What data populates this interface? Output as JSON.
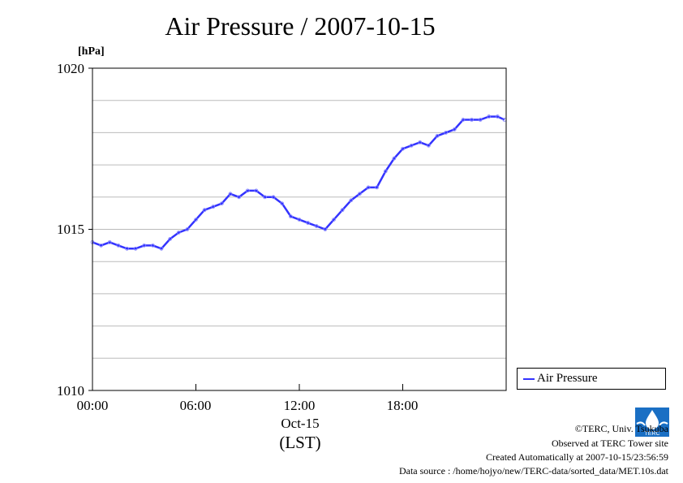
{
  "chart_data": {
    "type": "line",
    "title": "Air Pressure / 2007-10-15",
    "ylabel": "[hPa]",
    "ylim": [
      1010,
      1020
    ],
    "yticks": [
      "1010",
      "1015",
      "1020"
    ],
    "xlim": [
      "00:00",
      "24:00"
    ],
    "xticks": [
      "00:00",
      "06:00",
      "12:00",
      "18:00"
    ],
    "xlabel_date": "Oct-15",
    "xlabel_tz": "(LST)",
    "grid": true,
    "legend_position": "bottom-right",
    "series": [
      {
        "name": "Air Pressure",
        "color": "#3333ff",
        "x": [
          0.0,
          0.5,
          1.0,
          1.5,
          2.0,
          2.5,
          3.0,
          3.5,
          4.0,
          4.5,
          5.0,
          5.5,
          6.0,
          6.5,
          7.0,
          7.5,
          8.0,
          8.5,
          9.0,
          9.5,
          10.0,
          10.5,
          11.0,
          11.5,
          12.0,
          12.5,
          13.0,
          13.5,
          14.0,
          14.5,
          15.0,
          15.5,
          16.0,
          16.5,
          17.0,
          17.5,
          18.0,
          18.5,
          19.0,
          19.5,
          20.0,
          20.5,
          21.0,
          21.5,
          22.0,
          22.5,
          23.0,
          23.5,
          23.9
        ],
        "y": [
          1014.6,
          1014.5,
          1014.6,
          1014.5,
          1014.4,
          1014.4,
          1014.5,
          1014.5,
          1014.4,
          1014.7,
          1014.9,
          1015.0,
          1015.3,
          1015.6,
          1015.7,
          1015.8,
          1016.1,
          1016.0,
          1016.2,
          1016.2,
          1016.0,
          1016.0,
          1015.8,
          1015.4,
          1015.3,
          1015.2,
          1015.1,
          1015.0,
          1015.3,
          1015.6,
          1015.9,
          1016.1,
          1016.3,
          1016.3,
          1016.8,
          1017.2,
          1017.5,
          1017.6,
          1017.7,
          1017.6,
          1017.9,
          1018.0,
          1018.1,
          1018.4,
          1018.4,
          1018.4,
          1018.5,
          1018.5,
          1018.4
        ]
      }
    ]
  },
  "legend": {
    "label": "Air Pressure"
  },
  "footer": {
    "copyright": "©TERC, Univ. Tsukuba",
    "observed": "Observed at TERC Tower site",
    "created": "Created Automatically at 2007-10-15/23:56:59",
    "source": "Data source : /home/hojyo/new/TERC-data/sorted_data/MET.10s.dat",
    "logo_text": "TERC"
  }
}
